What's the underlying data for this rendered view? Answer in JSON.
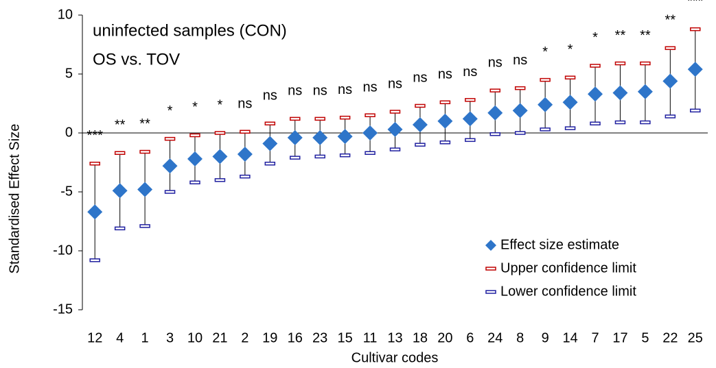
{
  "chart_data": {
    "type": "scatter",
    "title": "uninfected samples (CON)",
    "subtitle": "OS vs. TOV",
    "x_label": "Cultivar codes",
    "y_label": "Standardised Effect Size",
    "categories": [
      "12",
      "4",
      "1",
      "3",
      "10",
      "21",
      "2",
      "19",
      "16",
      "23",
      "15",
      "11",
      "13",
      "18",
      "20",
      "6",
      "24",
      "8",
      "9",
      "14",
      "7",
      "17",
      "5",
      "22",
      "25"
    ],
    "series": [
      {
        "name": "Effect size estimate",
        "color": "#2e75c9",
        "values": [
          -6.7,
          -4.9,
          -4.8,
          -2.8,
          -2.2,
          -2.0,
          -1.8,
          -0.9,
          -0.4,
          -0.4,
          -0.3,
          0.0,
          0.3,
          0.7,
          1.0,
          1.2,
          1.7,
          1.9,
          2.4,
          2.6,
          3.3,
          3.4,
          3.5,
          4.4,
          5.4
        ]
      },
      {
        "name": "Upper confidence limit",
        "color": "#c00000",
        "values": [
          -2.6,
          -1.7,
          -1.6,
          -0.5,
          -0.2,
          0.0,
          0.1,
          0.8,
          1.2,
          1.2,
          1.3,
          1.5,
          1.8,
          2.3,
          2.6,
          2.8,
          3.6,
          3.8,
          4.5,
          4.7,
          5.7,
          5.9,
          5.9,
          7.2,
          8.8
        ]
      },
      {
        "name": "Lower confidence limit",
        "color": "#1f1fa0",
        "values": [
          -10.8,
          -8.1,
          -7.9,
          -5.0,
          -4.2,
          -4.0,
          -3.7,
          -2.6,
          -2.1,
          -2.0,
          -1.9,
          -1.7,
          -1.4,
          -1.0,
          -0.8,
          -0.6,
          -0.1,
          0.0,
          0.3,
          0.4,
          0.8,
          0.9,
          0.9,
          1.4,
          1.9
        ]
      }
    ],
    "annotations": [
      "***",
      "**",
      "**",
      "*",
      "*",
      "*",
      "ns",
      "ns",
      "ns",
      "ns",
      "ns",
      "ns",
      "ns",
      "ns",
      "ns",
      "ns",
      "ns",
      "ns",
      "*",
      "*",
      "*",
      "**",
      "**",
      "**",
      "***"
    ],
    "ylim": [
      -15,
      10
    ],
    "yticks": [
      -15,
      -10,
      -5,
      0,
      5,
      10
    ],
    "legend": "bottom-right"
  }
}
